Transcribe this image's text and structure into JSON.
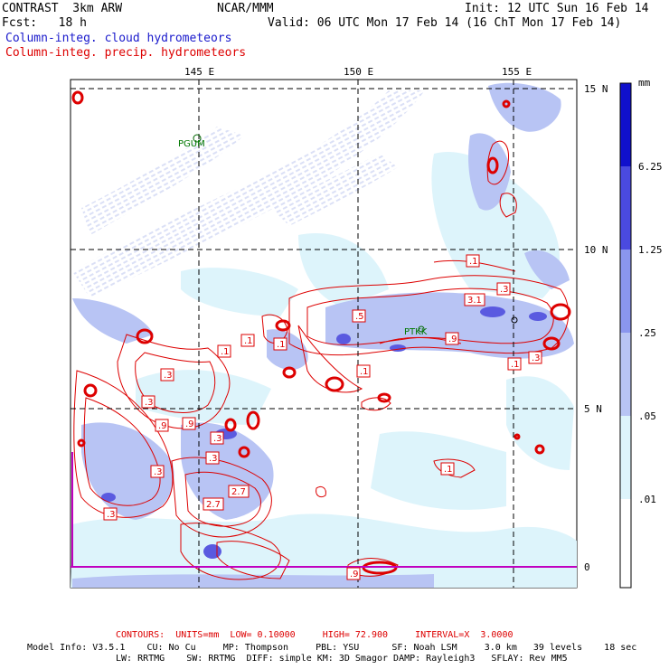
{
  "header": {
    "model": "CONTRAST  3km ARW",
    "org": "NCAR/MMM",
    "init": "Init: 12 UTC Sun 16 Feb 14",
    "fcst": "Fcst:   18 h",
    "valid": "Valid: 06 UTC Mon 17 Feb 14 (16 ChT Mon 17 Feb 14)",
    "legend_cloud": "Column-integ. cloud hydrometeors",
    "legend_precip": "Column-integ. precip. hydrometeors"
  },
  "colors": {
    "cloud_legend": "#1a1acc",
    "precip": "#dd0000",
    "shade_1": "#ddf4fb",
    "shade_2": "#b8c4f4",
    "shade_3": "#8a96ee",
    "shade_4": "#4a4ae0",
    "shade_5": "#1010cc",
    "equator_line": "#c000c0"
  },
  "map": {
    "lon_labels": [
      "145 E",
      "150 E",
      "155 E"
    ],
    "lat_labels": [
      "15 N",
      "10 N",
      "5 N",
      "0"
    ],
    "places": [
      "PGUM",
      "PTKK"
    ],
    "contour_labels": [
      ".3",
      ".1",
      ".1",
      ".1",
      ".5",
      ".1",
      ".9",
      ".1",
      ".3",
      ".9",
      "3.1",
      ".3",
      ".1",
      ".3",
      ".9",
      ".3",
      ".3",
      ".3",
      ".1",
      "2.7",
      "2.7",
      ".3",
      ".9"
    ]
  },
  "colorbar": {
    "unit": "mm",
    "labels": [
      "6.25",
      "1.25",
      ".25",
      ".05",
      ".01"
    ]
  },
  "footer": {
    "contours": "CONTOURS:  UNITS=mm  LOW= 0.10000     HIGH= 72.900     INTERVAL=X  3.0000",
    "model_info": "Model Info: V3.5.1    CU: No Cu     MP: Thompson     PBL: YSU      SF: Noah LSM     3.0 km   39 levels    18 sec",
    "model_info2": "LW: RRTMG    SW: RRTMG  DIFF: simple KM: 3D Smagor DAMP: Rayleigh3   SFLAY: Rev MM5"
  }
}
